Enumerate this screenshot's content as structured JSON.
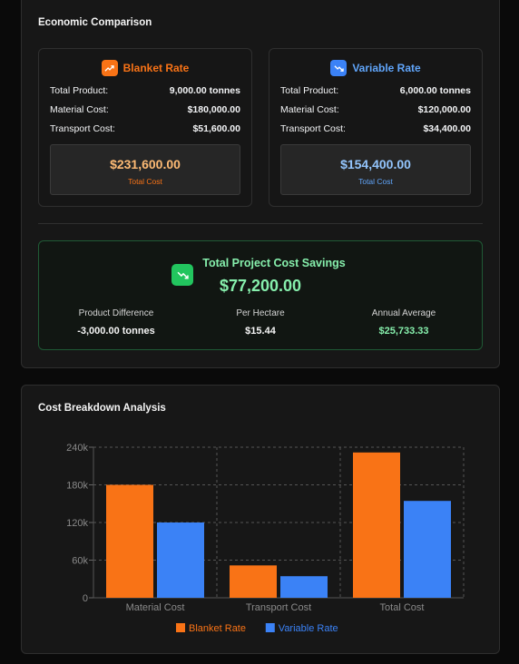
{
  "economic": {
    "title": "Economic Comparison",
    "blanket": {
      "name": "Blanket Rate",
      "color": "#f97316",
      "rows": [
        {
          "label": "Total Product:",
          "value": "9,000.00 tonnes"
        },
        {
          "label": "Material Cost:",
          "value": "$180,000.00"
        },
        {
          "label": "Transport Cost:",
          "value": "$51,600.00"
        }
      ],
      "total_value": "$231,600.00",
      "total_label": "Total Cost"
    },
    "variable": {
      "name": "Variable Rate",
      "color": "#3b82f6",
      "rows": [
        {
          "label": "Total Product:",
          "value": "6,000.00 tonnes"
        },
        {
          "label": "Material Cost:",
          "value": "$120,000.00"
        },
        {
          "label": "Transport Cost:",
          "value": "$34,400.00"
        }
      ],
      "total_value": "$154,400.00",
      "total_label": "Total Cost"
    },
    "savings": {
      "title": "Total Project Cost Savings",
      "value": "$77,200.00",
      "stats": [
        {
          "label": "Product Difference",
          "value": "-3,000.00 tonnes"
        },
        {
          "label": "Per Hectare",
          "value": "$15.44"
        },
        {
          "label": "Annual Average",
          "value": "$25,733.33"
        }
      ]
    }
  },
  "chart_card": {
    "title": "Cost Breakdown Analysis"
  },
  "chart_data": {
    "type": "bar",
    "categories": [
      "Material Cost",
      "Transport Cost",
      "Total Cost"
    ],
    "series": [
      {
        "name": "Blanket Rate",
        "color": "#f97316",
        "values": [
          180000,
          51600,
          231600
        ]
      },
      {
        "name": "Variable Rate",
        "color": "#3b82f6",
        "values": [
          120000,
          34400,
          154400
        ]
      }
    ],
    "yticks": [
      "0",
      "60k",
      "120k",
      "180k",
      "240k"
    ],
    "ylim": [
      0,
      240000
    ],
    "grid": true,
    "legend": "bottom"
  }
}
